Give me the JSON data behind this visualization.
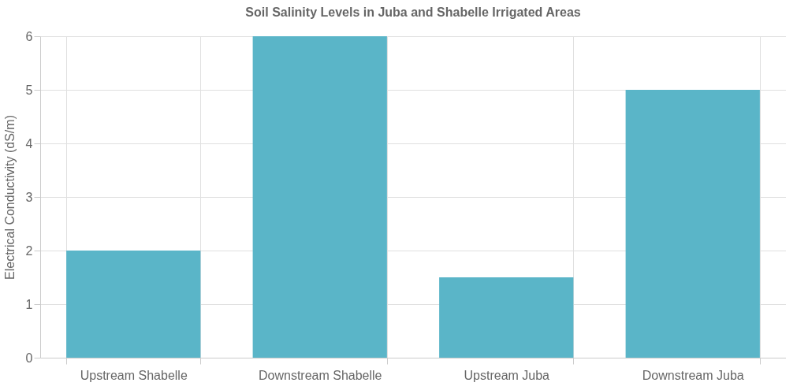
{
  "chart_data": {
    "type": "bar",
    "title": "Soil Salinity Levels in Juba and Shabelle Irrigated Areas",
    "ylabel": "Electrical Conductivity (dS/m)",
    "categories": [
      "Upstream Shabelle",
      "Downstream Shabelle",
      "Upstream Juba",
      "Downstream Juba"
    ],
    "values": [
      2,
      6,
      1.5,
      5
    ],
    "color": "#5ab5c8",
    "ylim": [
      0,
      6
    ],
    "yticks": [
      0,
      1,
      2,
      3,
      4,
      5,
      6
    ],
    "grid": true
  }
}
